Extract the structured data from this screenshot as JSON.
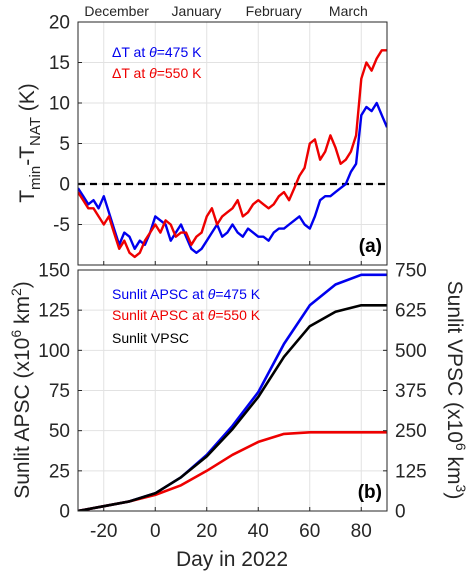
{
  "chart_data": [
    {
      "type": "line",
      "panel_label": "(a)",
      "ylabel": "T_min - T_NAT (K)",
      "ylabel_parts": {
        "t": "T",
        "min": "min",
        "mid": "-T",
        "nat": "NAT",
        "unit": " (K)"
      },
      "xlim": [
        -30,
        90
      ],
      "ylim": [
        -10,
        20
      ],
      "yticks": [
        "-5",
        "0",
        "5",
        "10",
        "15",
        "20"
      ],
      "ytick_values": [
        -5,
        0,
        5,
        10,
        15,
        20
      ],
      "top_axis_months": [
        {
          "label": "December",
          "x": -15
        },
        {
          "label": "January",
          "x": 16
        },
        {
          "label": "February",
          "x": 46
        },
        {
          "label": "March",
          "x": 75
        }
      ],
      "grid": true,
      "zero_line": {
        "y": 0,
        "style": "dashed",
        "color": "#000000"
      },
      "legend": {
        "placement": "top-left",
        "style": "text-only"
      },
      "series": [
        {
          "name": "ΔT at θ=475 K",
          "legend_parts": [
            "ΔT at ",
            "θ",
            "=475 K"
          ],
          "color": "#0000ee",
          "x": [
            -30,
            -28,
            -26,
            -24,
            -22,
            -20,
            -18,
            -16,
            -14,
            -12,
            -10,
            -8,
            -6,
            -4,
            -2,
            0,
            2,
            4,
            6,
            8,
            10,
            12,
            14,
            16,
            18,
            20,
            22,
            24,
            26,
            28,
            30,
            32,
            34,
            36,
            38,
            40,
            42,
            44,
            46,
            48,
            50,
            52,
            54,
            56,
            58,
            60,
            62,
            64,
            66,
            68,
            70,
            72,
            74,
            76,
            78,
            80,
            82,
            84,
            86,
            88,
            90
          ],
          "y": [
            -0.5,
            -1.5,
            -2.5,
            -2,
            -3,
            -1.5,
            -3.5,
            -5.5,
            -7.5,
            -6,
            -6.5,
            -8,
            -7,
            -7.5,
            -6,
            -4,
            -4.5,
            -5,
            -7,
            -6,
            -5,
            -6.5,
            -8,
            -8.5,
            -8,
            -7,
            -6,
            -5,
            -6.5,
            -6,
            -5,
            -6,
            -6.5,
            -5.5,
            -6,
            -6.5,
            -6.5,
            -7,
            -6,
            -5.5,
            -5.5,
            -5,
            -4.5,
            -4,
            -5,
            -5.5,
            -4,
            -2,
            -1.5,
            -1.5,
            -1,
            -0.5,
            0,
            1.5,
            2.5,
            8.5,
            9.5,
            9,
            10,
            8.5,
            7
          ]
        },
        {
          "name": "ΔT at θ=550 K",
          "legend_parts": [
            "ΔT at ",
            "θ",
            "=550 K"
          ],
          "color": "#ee0000",
          "x": [
            -30,
            -28,
            -26,
            -24,
            -22,
            -20,
            -18,
            -16,
            -14,
            -12,
            -10,
            -8,
            -6,
            -4,
            -2,
            0,
            2,
            4,
            6,
            8,
            10,
            12,
            14,
            16,
            18,
            20,
            22,
            24,
            26,
            28,
            30,
            32,
            34,
            36,
            38,
            40,
            42,
            44,
            46,
            48,
            50,
            52,
            54,
            56,
            58,
            60,
            62,
            64,
            66,
            68,
            70,
            72,
            74,
            76,
            78,
            80,
            82,
            84,
            86,
            88,
            90
          ],
          "y": [
            -1,
            -2,
            -3,
            -3,
            -4,
            -5,
            -4,
            -6,
            -8,
            -7,
            -8.5,
            -9,
            -8.5,
            -7,
            -6,
            -5,
            -6,
            -4.5,
            -5,
            -6.5,
            -6,
            -6,
            -7.5,
            -6.5,
            -6,
            -4,
            -3,
            -5,
            -4,
            -3.5,
            -3,
            -2,
            -4,
            -3.5,
            -2.5,
            -2,
            -2.5,
            -3,
            -2.5,
            -1.5,
            -1,
            -2,
            -0.5,
            1,
            2,
            5,
            5.5,
            3,
            4,
            6,
            4.5,
            2.5,
            3,
            4,
            6,
            13,
            15,
            14,
            15.5,
            16.5,
            16.5
          ]
        }
      ]
    },
    {
      "type": "line",
      "panel_label": "(b)",
      "xlabel": "Day in 2022",
      "ylabel_left": "Sunlit APSC (x10^6 km^2)",
      "ylabel_left_parts": {
        "main": "Sunlit APSC (x10",
        "exp1": "6",
        "mid": " km",
        "exp2": "2",
        "end": ")"
      },
      "ylabel_right": "Sunlit VPSC (x10^6 km^3)",
      "ylabel_right_parts": {
        "main": "Sunlit VPSC (x10",
        "exp1": "6",
        "mid": " km",
        "exp2": "3",
        "end": ")"
      },
      "xlim": [
        -30,
        90
      ],
      "ylim_left": [
        0,
        150
      ],
      "ylim_right": [
        0,
        750
      ],
      "xticks": [
        "-20",
        "0",
        "20",
        "40",
        "60",
        "80"
      ],
      "xtick_values": [
        -20,
        0,
        20,
        40,
        60,
        80
      ],
      "yticks_left": [
        "0",
        "25",
        "50",
        "75",
        "100",
        "125",
        "150"
      ],
      "ytick_left_values": [
        0,
        25,
        50,
        75,
        100,
        125,
        150
      ],
      "yticks_right": [
        "0",
        "125",
        "250",
        "375",
        "500",
        "625",
        "750"
      ],
      "ytick_right_values": [
        0,
        125,
        250,
        375,
        500,
        625,
        750
      ],
      "grid": true,
      "legend": {
        "placement": "top-left",
        "style": "text-only"
      },
      "series": [
        {
          "name": "Sunlit APSC at θ=475 K",
          "legend_parts": [
            "Sunlit APSC at ",
            "θ",
            "=475 K"
          ],
          "color": "#0000ee",
          "axis": "left",
          "x": [
            -30,
            -20,
            -10,
            0,
            10,
            20,
            30,
            40,
            50,
            60,
            70,
            80,
            90
          ],
          "y": [
            0,
            3,
            6,
            11,
            21,
            35,
            53,
            74,
            104,
            128,
            141,
            147,
            147
          ]
        },
        {
          "name": "Sunlit APSC at θ=550 K",
          "legend_parts": [
            "Sunlit APSC at ",
            "θ",
            "=550 K"
          ],
          "color": "#ee0000",
          "axis": "left",
          "x": [
            -30,
            -20,
            -10,
            0,
            10,
            20,
            30,
            40,
            50,
            60,
            70,
            80,
            90
          ],
          "y": [
            0,
            3,
            6,
            10,
            16,
            25,
            35,
            43,
            48,
            49,
            49,
            49,
            49
          ]
        },
        {
          "name": "Sunlit VPSC",
          "legend_parts": [
            "Sunlit VPSC"
          ],
          "color": "#000000",
          "axis": "right",
          "x": [
            -30,
            -20,
            -10,
            0,
            10,
            20,
            30,
            40,
            50,
            60,
            70,
            80,
            90
          ],
          "y": [
            0,
            15,
            30,
            55,
            105,
            170,
            255,
            355,
            480,
            575,
            620,
            640,
            640
          ]
        }
      ]
    }
  ]
}
